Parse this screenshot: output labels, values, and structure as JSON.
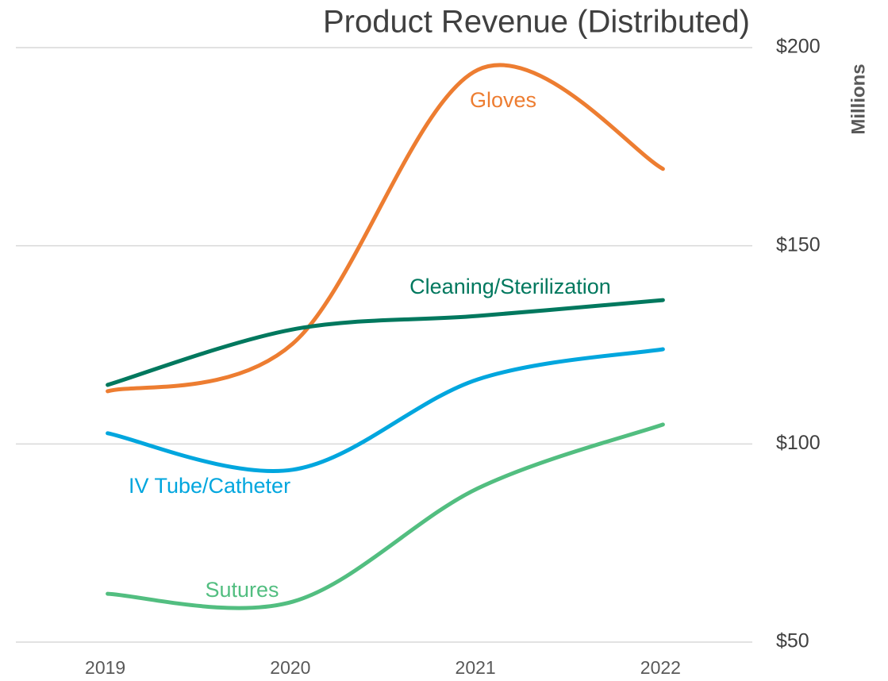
{
  "chart_data": {
    "type": "line",
    "title": "Product Revenue (Distributed)",
    "y_label": "Millions",
    "categories": [
      "2019",
      "2020",
      "2021",
      "2022"
    ],
    "series": [
      {
        "name": "Gloves",
        "color": "#ed7d31",
        "values": [
          113.3,
          125.3,
          194.4,
          169.4
        ]
      },
      {
        "name": "Cleaning/Sterilization",
        "color": "#00785e",
        "values": [
          114.9,
          128.9,
          132.3,
          136.3
        ]
      },
      {
        "name": "IV Tube/Catheter",
        "color": "#00a6de",
        "values": [
          102.7,
          93.5,
          116.3,
          123.9
        ]
      },
      {
        "name": "Sutures",
        "color": "#52be80",
        "values": [
          62.2,
          60.2,
          88.8,
          104.9
        ]
      }
    ],
    "ylim": [
      50,
      200
    ],
    "yticks": [
      {
        "value": 50,
        "label": "$50"
      },
      {
        "value": 100,
        "label": "$100"
      },
      {
        "value": 150,
        "label": "$150"
      },
      {
        "value": 200,
        "label": "$200"
      }
    ],
    "grid": true
  }
}
